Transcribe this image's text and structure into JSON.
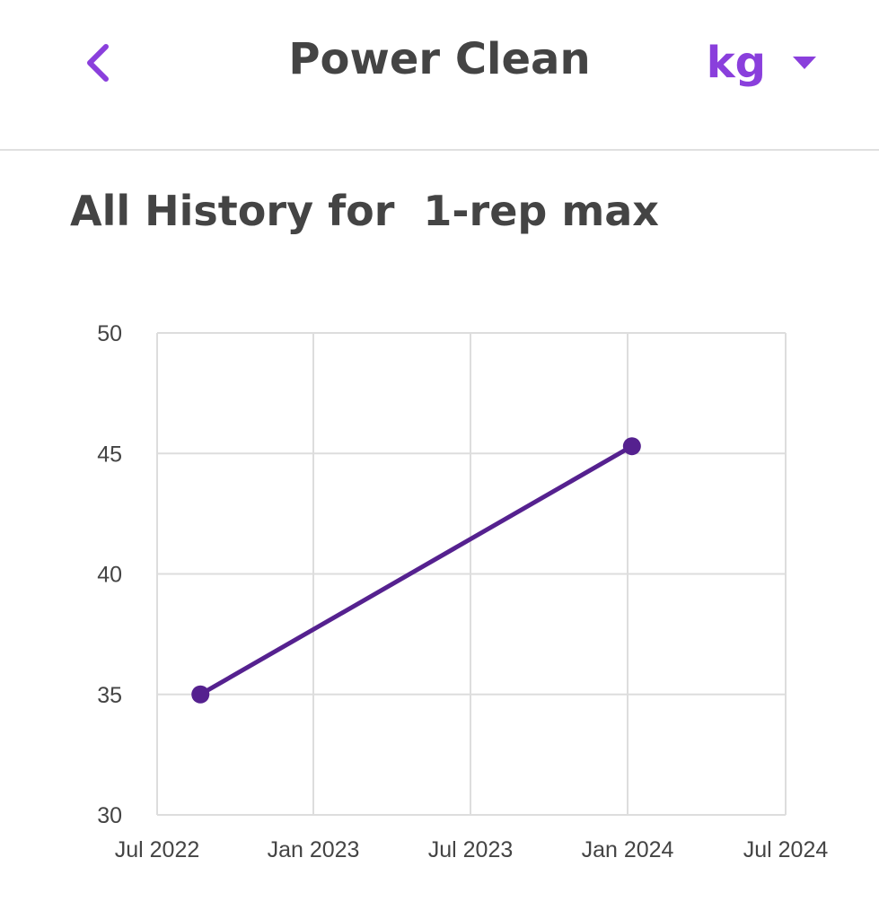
{
  "header": {
    "title": "Power Clean",
    "unit": "kg"
  },
  "icons": {
    "back": "chevron-left-icon",
    "unit_dropdown": "caret-down-icon"
  },
  "colors": {
    "accent": "#8a3fdc",
    "line": "#55218f",
    "text": "#444444",
    "grid": "#dddddd"
  },
  "section_title": "All History for  1-rep max",
  "chart_data": {
    "type": "line",
    "x_tick_labels": [
      "Jul 2022",
      "Jan 2023",
      "Jul 2023",
      "Jan 2024",
      "Jul 2024"
    ],
    "y_tick_labels": [
      "50",
      "45",
      "40",
      "35",
      "30"
    ],
    "ylim": [
      30,
      50
    ],
    "series": [
      {
        "x": [
          "2022-08-21",
          "2024-01-06"
        ],
        "y": [
          35,
          45.3
        ]
      }
    ],
    "grid": true
  }
}
